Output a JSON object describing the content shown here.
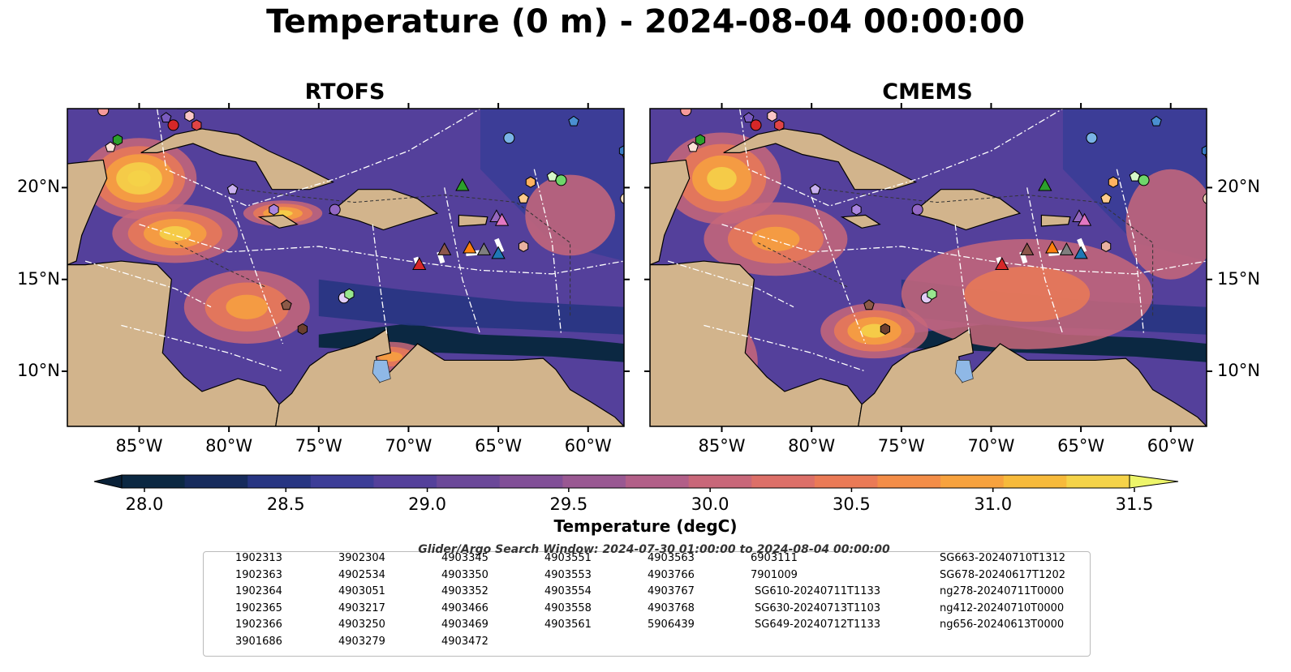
{
  "title": "Temperature (0 m) - 2024-08-04 00:00:00",
  "panels": [
    {
      "title": "RTOFS"
    },
    {
      "title": "CMEMS"
    }
  ],
  "lat_ticks": [
    "20°N",
    "15°N",
    "10°N"
  ],
  "lon_ticks": [
    "85°W",
    "80°W",
    "75°W",
    "70°W",
    "65°W",
    "60°W"
  ],
  "colorbar": {
    "label": "Temperature (degC)",
    "ticks": [
      "28.0",
      "28.5",
      "29.0",
      "29.5",
      "30.0",
      "30.5",
      "31.0",
      "31.5"
    ],
    "colors": [
      "#0b2842",
      "#162b5c",
      "#273582",
      "#3c3d97",
      "#54409b",
      "#6b4899",
      "#814f97",
      "#995892",
      "#b25f88",
      "#c86779",
      "#dc6f68",
      "#ea7a56",
      "#f38d48",
      "#f7a23e",
      "#f7ba3b",
      "#f5d349"
    ],
    "under_color": "#0a2138",
    "over_color": "#edf56a"
  },
  "legend": {
    "header": "Glider/Argo Search Window: 2024-07-30 01:00:00 to 2024-08-04 00:00:00",
    "items": [
      {
        "label": "1902313",
        "marker": "circle",
        "color": "#1f77b4"
      },
      {
        "label": "1902363",
        "marker": "hexagon",
        "color": "#3b7cc4"
      },
      {
        "label": "1902364",
        "marker": "pentagon",
        "color": "#4a8fd1"
      },
      {
        "label": "1902365",
        "marker": "circle",
        "color": "#7ab3e6"
      },
      {
        "label": "1902366",
        "marker": "hexagon",
        "color": "#d9ecfa"
      },
      {
        "label": "3901686",
        "marker": "pentagon",
        "color": "#ff7f0e"
      },
      {
        "label": "3902304",
        "marker": "circle",
        "color": "#ff9a3c"
      },
      {
        "label": "4902534",
        "marker": "hexagon",
        "color": "#ffb160"
      },
      {
        "label": "4903051",
        "marker": "pentagon",
        "color": "#ffcc8c"
      },
      {
        "label": "4903217",
        "marker": "circle",
        "color": "#ffe2c4"
      },
      {
        "label": "4903250",
        "marker": "hexagon",
        "color": "#2ca02c"
      },
      {
        "label": "4903279",
        "marker": "pentagon",
        "color": "#3bb34a"
      },
      {
        "label": "4903345",
        "marker": "circle",
        "color": "#6fd66a"
      },
      {
        "label": "4903350",
        "marker": "hexagon",
        "color": "#98e68e"
      },
      {
        "label": "4903352",
        "marker": "pentagon",
        "color": "#d5f7c9"
      },
      {
        "label": "4903466",
        "marker": "circle",
        "color": "#d62728"
      },
      {
        "label": "4903469",
        "marker": "hexagon",
        "color": "#e04446"
      },
      {
        "label": "4903472",
        "marker": "pentagon",
        "color": "#ee6a6a"
      },
      {
        "label": "4903551",
        "marker": "circle",
        "color": "#f79a9a"
      },
      {
        "label": "4903553",
        "marker": "hexagon",
        "color": "#fbc7c7"
      },
      {
        "label": "4903554",
        "marker": "pentagon",
        "color": "#7a5bbf"
      },
      {
        "label": "4903558",
        "marker": "circle",
        "color": "#9267c4"
      },
      {
        "label": "4903561",
        "marker": "hexagon",
        "color": "#a985e0"
      },
      {
        "label": "4903563",
        "marker": "pentagon",
        "color": "#c9b1ef"
      },
      {
        "label": "4903766",
        "marker": "circle",
        "color": "#e2cdf8"
      },
      {
        "label": "4903767",
        "marker": "hexagon",
        "color": "#6b3f2f"
      },
      {
        "label": "4903768",
        "marker": "pentagon",
        "color": "#8c5a48"
      },
      {
        "label": "5906439",
        "marker": "circle",
        "color": "#c9806c"
      },
      {
        "label": "6903111",
        "marker": "hexagon",
        "color": "#e8b0a0"
      },
      {
        "label": "7901009",
        "marker": "pentagon",
        "color": "#fde0d8"
      },
      {
        "label": "SG610-20240711T1133",
        "marker": "triangle",
        "color": "#1f77b4",
        "line": true
      },
      {
        "label": "SG630-20240713T1103",
        "marker": "triangle",
        "color": "#ff7f0e",
        "line": true
      },
      {
        "label": "SG649-20240712T1133",
        "marker": "triangle",
        "color": "#2ca02c",
        "line": true
      },
      {
        "label": "SG663-20240710T1312",
        "marker": "triangle",
        "color": "#d62728",
        "line": true
      },
      {
        "label": "SG678-20240617T1202",
        "marker": "triangle",
        "color": "#9467bd",
        "line": true
      },
      {
        "label": "ng278-20240711T0000",
        "marker": "triangle",
        "color": "#8c564b",
        "line": true
      },
      {
        "label": "ng412-20240710T0000",
        "marker": "triangle",
        "color": "#e377c2",
        "line": true
      },
      {
        "label": "ng656-20240613T0000",
        "marker": "triangle",
        "color": "#7f7f7f",
        "line": true
      }
    ]
  },
  "chart_data": {
    "type": "heatmap",
    "title": "Temperature (0 m) - 2024-08-04 00:00:00",
    "panels": [
      "RTOFS",
      "CMEMS"
    ],
    "xlim": [
      -89,
      -58
    ],
    "ylim": [
      7,
      24.3
    ],
    "xticks": [
      -85,
      -80,
      -75,
      -70,
      -65,
      -60
    ],
    "yticks": [
      20,
      15,
      10
    ],
    "colorbar_range": [
      28.0,
      31.5
    ],
    "colorbar_label": "Temperature (degC)",
    "extend": "both",
    "observations": [
      {
        "label": "1902365",
        "lon": -64.4,
        "lat": 22.7,
        "marker": "circle",
        "color": "#7ab3e6"
      },
      {
        "label": "1902364",
        "lon": -60.8,
        "lat": 23.6,
        "marker": "pentagon",
        "color": "#4a8fd1"
      },
      {
        "label": "1902363",
        "lon": -58.0,
        "lat": 22.0,
        "marker": "hexagon",
        "color": "#3b7cc4"
      },
      {
        "label": "3901686",
        "lon": -57.8,
        "lat": 21.7,
        "marker": "pentagon",
        "color": "#ff7f0e"
      },
      {
        "label": "4902534",
        "lon": -63.2,
        "lat": 20.3,
        "marker": "hexagon",
        "color": "#ffb160"
      },
      {
        "label": "4903051",
        "lon": -63.6,
        "lat": 19.4,
        "marker": "pentagon",
        "color": "#ffcc8c"
      },
      {
        "label": "4903217",
        "lon": -57.9,
        "lat": 19.4,
        "marker": "circle",
        "color": "#ffe2c4"
      },
      {
        "label": "4903345",
        "lon": -61.5,
        "lat": 20.4,
        "marker": "circle",
        "color": "#6fd66a"
      },
      {
        "label": "4903352",
        "lon": -62.0,
        "lat": 20.6,
        "marker": "pentagon",
        "color": "#d5f7c9"
      },
      {
        "label": "4903250",
        "lon": -86.2,
        "lat": 22.6,
        "marker": "hexagon",
        "color": "#2ca02c"
      },
      {
        "label": "4903466",
        "lon": -83.1,
        "lat": 23.4,
        "marker": "circle",
        "color": "#d62728"
      },
      {
        "label": "4903469",
        "lon": -81.8,
        "lat": 23.4,
        "marker": "hexagon",
        "color": "#e04446"
      },
      {
        "label": "4903551",
        "lon": -87.0,
        "lat": 24.2,
        "marker": "circle",
        "color": "#f79a9a"
      },
      {
        "label": "4903553",
        "lon": -82.2,
        "lat": 23.9,
        "marker": "hexagon",
        "color": "#fbc7c7"
      },
      {
        "label": "4903554",
        "lon": -83.5,
        "lat": 23.8,
        "marker": "pentagon",
        "color": "#7a5bbf"
      },
      {
        "label": "4903558",
        "lon": -74.1,
        "lat": 18.8,
        "marker": "circle",
        "color": "#9267c4"
      },
      {
        "label": "4903561",
        "lon": -77.5,
        "lat": 18.8,
        "marker": "hexagon",
        "color": "#a985e0"
      },
      {
        "label": "4903563",
        "lon": -79.8,
        "lat": 19.9,
        "marker": "pentagon",
        "color": "#c9b1ef"
      },
      {
        "label": "4903766",
        "lon": -73.6,
        "lat": 14.0,
        "marker": "circle",
        "color": "#e2cdf8"
      },
      {
        "label": "4903767",
        "lon": -75.9,
        "lat": 12.3,
        "marker": "hexagon",
        "color": "#6b3f2f"
      },
      {
        "label": "4903768",
        "lon": -76.8,
        "lat": 13.6,
        "marker": "pentagon",
        "color": "#8c5a48"
      },
      {
        "label": "4903350",
        "lon": -73.3,
        "lat": 14.2,
        "marker": "hexagon",
        "color": "#98e68e"
      },
      {
        "label": "6903111",
        "lon": -63.6,
        "lat": 16.8,
        "marker": "hexagon",
        "color": "#e8b0a0"
      },
      {
        "label": "7901009",
        "lon": -86.6,
        "lat": 22.2,
        "marker": "pentagon",
        "color": "#fde0d8"
      },
      {
        "label": "SG610-20240711T1133",
        "lon": -65.0,
        "lat": 16.4,
        "marker": "triangle",
        "color": "#1f77b4"
      },
      {
        "label": "SG630-20240713T1103",
        "lon": -66.6,
        "lat": 16.7,
        "marker": "triangle",
        "color": "#ff7f0e"
      },
      {
        "label": "SG649-20240712T1133",
        "lon": -67.0,
        "lat": 20.1,
        "marker": "triangle",
        "color": "#2ca02c"
      },
      {
        "label": "SG663-20240710T1312",
        "lon": -69.4,
        "lat": 15.8,
        "marker": "triangle",
        "color": "#d62728"
      },
      {
        "label": "SG678-20240617T1202",
        "lon": -65.1,
        "lat": 18.4,
        "marker": "triangle",
        "color": "#9467bd"
      },
      {
        "label": "ng278-20240711T0000",
        "lon": -68.0,
        "lat": 16.6,
        "marker": "triangle",
        "color": "#8c564b"
      },
      {
        "label": "ng412-20240710T0000",
        "lon": -64.8,
        "lat": 18.2,
        "marker": "triangle",
        "color": "#e377c2"
      },
      {
        "label": "ng656-20240613T0000",
        "lon": -65.8,
        "lat": 16.6,
        "marker": "triangle",
        "color": "#7f7f7f"
      }
    ]
  }
}
